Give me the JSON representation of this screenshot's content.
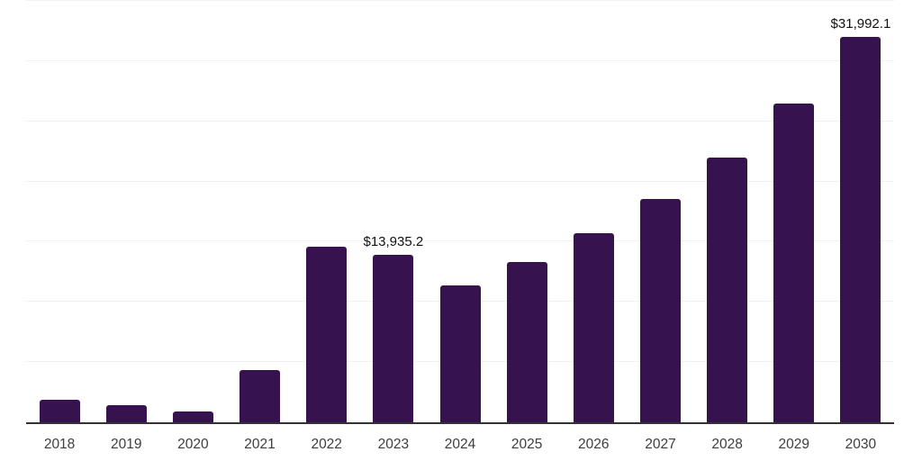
{
  "chart_data": {
    "type": "bar",
    "title": "",
    "xlabel": "",
    "ylabel": "",
    "categories": [
      "2018",
      "2019",
      "2020",
      "2021",
      "2022",
      "2023",
      "2024",
      "2025",
      "2026",
      "2027",
      "2028",
      "2029",
      "2030"
    ],
    "values": [
      1900,
      1450,
      890,
      4370,
      14600,
      13935.2,
      11400,
      13300,
      15700,
      18550,
      22000,
      26450,
      31992.1
    ],
    "value_labels": [
      "",
      "",
      "",
      "",
      "",
      "$13,935.2",
      "",
      "",
      "",
      "",
      "",
      "",
      "$31,992.1"
    ],
    "ylim": [
      0,
      35000
    ],
    "gridline_step": 5000,
    "grid": true,
    "legend_position": "none",
    "colors": {
      "bar": "#36134E",
      "grid": "#f2f2f2",
      "axis": "#333333",
      "tick_label": "#3d3d3d",
      "value_label": "#111111",
      "background": "#ffffff"
    }
  }
}
